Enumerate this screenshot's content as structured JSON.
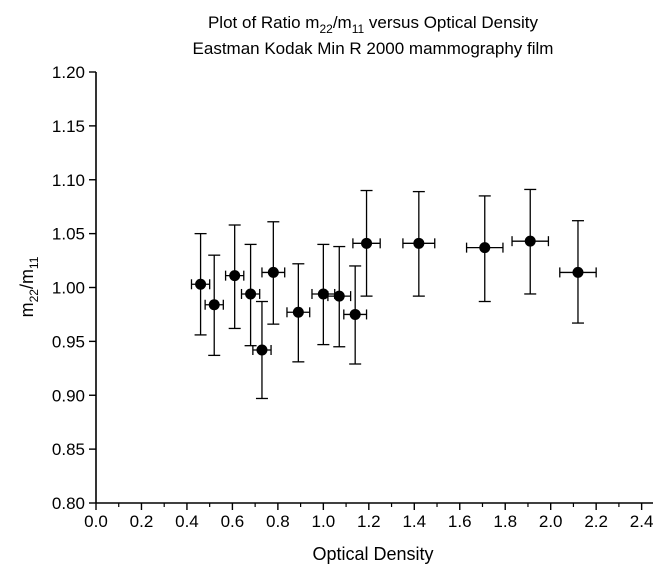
{
  "chart_data": {
    "type": "scatter",
    "title": [
      "Plot of Ratio m",
      "22",
      "/m",
      "11",
      " versus Optical Density"
    ],
    "subtitle": "Eastman Kodak Min R 2000 mammography film",
    "xlabel": "Optical Density",
    "ylabel": [
      "m",
      "22",
      "/m",
      "11"
    ],
    "xlim": [
      0.0,
      2.45
    ],
    "ylim": [
      0.8,
      1.2
    ],
    "x_ticks": [
      "0.0",
      "0.2",
      "0.4",
      "0.6",
      "0.8",
      "1.0",
      "1.2",
      "1.4",
      "1.6",
      "1.8",
      "2.0",
      "2.2",
      "2.4"
    ],
    "y_ticks": [
      "0.80",
      "0.85",
      "0.90",
      "0.95",
      "1.00",
      "1.05",
      "1.10",
      "1.15",
      "1.20"
    ],
    "grid": false,
    "legend": "none",
    "points": [
      {
        "x": 0.46,
        "y": 1.003,
        "xerr": 0.04,
        "ylow": 0.956,
        "yhigh": 1.05
      },
      {
        "x": 0.52,
        "y": 0.984,
        "xerr": 0.04,
        "ylow": 0.937,
        "yhigh": 1.03
      },
      {
        "x": 0.61,
        "y": 1.011,
        "xerr": 0.04,
        "ylow": 0.962,
        "yhigh": 1.058
      },
      {
        "x": 0.68,
        "y": 0.994,
        "xerr": 0.04,
        "ylow": 0.946,
        "yhigh": 1.04
      },
      {
        "x": 0.73,
        "y": 0.942,
        "xerr": 0.04,
        "ylow": 0.897,
        "yhigh": 0.987
      },
      {
        "x": 0.78,
        "y": 1.014,
        "xerr": 0.05,
        "ylow": 0.966,
        "yhigh": 1.061
      },
      {
        "x": 0.89,
        "y": 0.977,
        "xerr": 0.05,
        "ylow": 0.931,
        "yhigh": 1.022
      },
      {
        "x": 1.0,
        "y": 0.994,
        "xerr": 0.05,
        "ylow": 0.947,
        "yhigh": 1.04
      },
      {
        "x": 1.07,
        "y": 0.992,
        "xerr": 0.05,
        "ylow": 0.945,
        "yhigh": 1.038
      },
      {
        "x": 1.14,
        "y": 0.975,
        "xerr": 0.05,
        "ylow": 0.929,
        "yhigh": 1.02
      },
      {
        "x": 1.19,
        "y": 1.041,
        "xerr": 0.06,
        "ylow": 0.992,
        "yhigh": 1.09
      },
      {
        "x": 1.42,
        "y": 1.041,
        "xerr": 0.07,
        "ylow": 0.992,
        "yhigh": 1.089
      },
      {
        "x": 1.71,
        "y": 1.037,
        "xerr": 0.08,
        "ylow": 0.987,
        "yhigh": 1.085
      },
      {
        "x": 1.91,
        "y": 1.043,
        "xerr": 0.08,
        "ylow": 0.994,
        "yhigh": 1.091
      },
      {
        "x": 2.12,
        "y": 1.014,
        "xerr": 0.08,
        "ylow": 0.967,
        "yhigh": 1.062
      }
    ],
    "marker_color": "#000000"
  }
}
